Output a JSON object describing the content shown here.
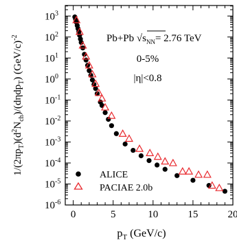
{
  "chart_data": {
    "type": "scatter",
    "title": "",
    "xlabel": "p",
    "xlabel_sub": "T",
    "xlabel_unit": " (GeV/c)",
    "ylabel_parts": [
      "1/(2πp",
      "T",
      ")(d",
      "2",
      "N",
      "ch",
      ")/(dηdp",
      "T",
      ") (GeV/c)",
      "-2"
    ],
    "xlim": [
      -1,
      20
    ],
    "ylim_log10": [
      -6,
      3.5
    ],
    "log_y": true,
    "grid": false,
    "x_ticks": [
      "0",
      "5",
      "10",
      "15",
      "20"
    ],
    "y_ticks": [
      "10^-6",
      "10^-5",
      "10^-4",
      "10^-3",
      "10^-2",
      "10^-1",
      "10^0",
      "10^1",
      "10^2",
      "10^3"
    ],
    "legend_position": "bottom-left",
    "annotations": {
      "system": "Pb+Pb √s",
      "system_sub": "NN",
      "energy": "= 2.76 TeV",
      "centrality": "0-5%",
      "eta_cut": "|η|<0.8"
    },
    "series": [
      {
        "name": "ALICE",
        "marker": "filled-circle",
        "color": "#000000",
        "x": [
          0.2,
          0.3,
          0.4,
          0.5,
          0.6,
          0.7,
          0.8,
          0.9,
          1.0,
          1.2,
          1.4,
          1.6,
          1.8,
          2.0,
          2.2,
          2.4,
          2.6,
          2.8,
          3.0,
          3.4,
          3.6,
          4.0,
          4.4,
          4.8,
          5.4,
          6.5,
          7.5,
          8.5,
          9.5,
          10.5,
          11.5,
          13.0,
          15.0,
          17.0,
          19.0
        ],
        "y": [
          900,
          700,
          500,
          350,
          250,
          180,
          120,
          80,
          55,
          30,
          15,
          8,
          4.5,
          2.5,
          1.5,
          0.9,
          0.55,
          0.35,
          0.2,
          0.08,
          0.055,
          0.025,
          0.012,
          0.006,
          0.0025,
          0.0008,
          0.0004,
          0.00022,
          0.00013,
          8e-05,
          5e-05,
          2.5e-05,
          1.5e-05,
          8.5e-06,
          4.5e-06
        ]
      },
      {
        "name": "PACIAE 2.0b",
        "marker": "open-triangle",
        "color": "#e8282d",
        "x": [
          0.4,
          0.8,
          1.2,
          1.6,
          2.0,
          2.4,
          2.8,
          3.2,
          3.6,
          4.0,
          4.8,
          6.2,
          7.0,
          8.3,
          9.6,
          10.6,
          11.5,
          12.5,
          13.7,
          14.5,
          15.7,
          16.8,
          17.4,
          18.3
        ],
        "y": [
          650,
          180,
          40,
          12,
          4.5,
          1.7,
          0.6,
          0.22,
          0.12,
          0.045,
          0.018,
          0.0025,
          0.00145,
          0.00048,
          0.0003,
          0.0002,
          0.00012,
          0.0001,
          4e-05,
          4e-05,
          2.8e-05,
          2.8e-05,
          8.5e-06,
          6.5e-06
        ]
      }
    ]
  }
}
